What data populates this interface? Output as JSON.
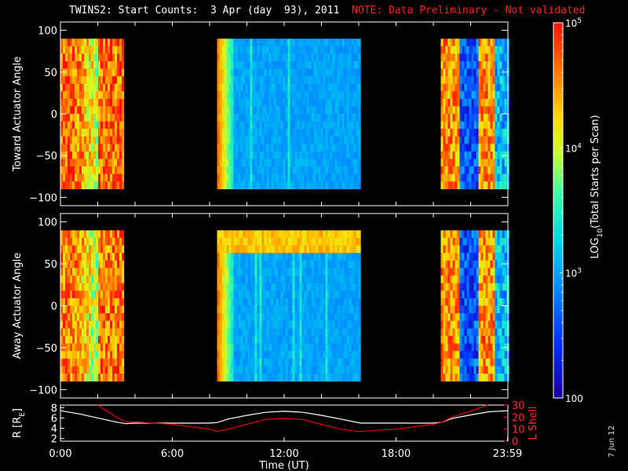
{
  "header": {
    "title": "TWINS2: Start Counts:  3 Apr (day  93), 2011",
    "note": "NOTE: Data Preliminary - Not validated"
  },
  "stamp": "7 Jun 12",
  "chart_data": [
    {
      "type": "heatmap",
      "ylabel": "Toward Actuator Angle",
      "ylim": [
        -110,
        110
      ],
      "yticks": [
        -100,
        -50,
        0,
        50,
        100
      ],
      "xlim_hours": [
        0,
        24
      ],
      "data_blocks_hours": [
        [
          0.0,
          3.35
        ],
        [
          8.4,
          16.1
        ],
        [
          20.4,
          24.0
        ]
      ],
      "y_extent_deg": [
        -90,
        90
      ],
      "block_level_log10": [
        4.7,
        3.0,
        3.2
      ]
    },
    {
      "type": "heatmap",
      "ylabel": "Away Actuator Angle",
      "ylim": [
        -110,
        110
      ],
      "yticks": [
        -100,
        -50,
        0,
        50,
        100
      ],
      "xlim_hours": [
        0,
        24
      ],
      "data_blocks_hours": [
        [
          0.0,
          3.35
        ],
        [
          8.4,
          16.1
        ],
        [
          20.4,
          24.0
        ]
      ],
      "y_extent_deg": [
        -90,
        90
      ],
      "block_level_log10": [
        4.6,
        3.0,
        3.2
      ],
      "high_band_deg": [
        60,
        90
      ]
    },
    {
      "type": "line",
      "xlabel": "Time (UT)",
      "xticks": [
        "0:00",
        "6:00",
        "12:00",
        "18:00",
        "23:59"
      ],
      "xtick_hours": [
        0,
        6,
        12,
        18,
        23.98
      ],
      "left_axis": {
        "label": "R [R",
        "label_sub": "E",
        "label_close": "]",
        "ticks": [
          "2",
          "4",
          "6",
          "8"
        ],
        "lim": [
          1.5,
          8.5
        ]
      },
      "right_axis": {
        "label": "L Shell",
        "ticks": [
          "0",
          "10",
          "20",
          "30"
        ],
        "lim": [
          0,
          30
        ]
      },
      "series": [
        {
          "name": "R",
          "color": "#ffffff",
          "x": [
            0,
            1,
            2,
            3,
            3.5,
            4,
            5,
            6,
            7,
            8,
            8.4,
            9,
            10,
            11,
            12,
            13,
            14,
            15,
            16.1,
            17,
            18,
            19,
            20,
            20.5,
            21,
            22,
            23,
            24
          ],
          "y": [
            7.4,
            6.8,
            6.0,
            5.2,
            4.9,
            5.0,
            5.0,
            5.0,
            5.0,
            5.0,
            5.1,
            5.8,
            6.5,
            7.1,
            7.3,
            7.1,
            6.5,
            5.8,
            5.0,
            5.0,
            5.0,
            5.0,
            5.0,
            5.2,
            5.9,
            6.6,
            7.2,
            7.4
          ]
        },
        {
          "name": "L Shell",
          "color": "#e00000",
          "x": [
            2.0,
            3.0,
            3.5,
            4.0,
            5.0,
            6.0,
            7.0,
            8.0,
            8.4,
            9.0,
            10.0,
            11.0,
            12.0,
            13.0,
            14.0,
            15.0,
            16.0,
            17.0,
            18.0,
            19.0,
            20.0,
            20.5,
            21.0,
            22.0,
            22.9
          ],
          "y": [
            30,
            20,
            16,
            16,
            15,
            14,
            12,
            10,
            8,
            10,
            14,
            18,
            19,
            18,
            14,
            10,
            8,
            9,
            10,
            12,
            14,
            16,
            20,
            25,
            30
          ]
        }
      ]
    }
  ],
  "colorbar": {
    "label": "LOG",
    "label_sub": "10",
    "label_rest": "(Total Starts per Scan)",
    "ticks": [
      {
        "base": "10",
        "exp": "5",
        "log": 5
      },
      {
        "base": "10",
        "exp": "4",
        "log": 4
      },
      {
        "base": "10",
        "exp": "3",
        "log": 3
      },
      {
        "base": "100",
        "exp": "",
        "log": 2
      }
    ],
    "lim_log": [
      2,
      5
    ]
  }
}
